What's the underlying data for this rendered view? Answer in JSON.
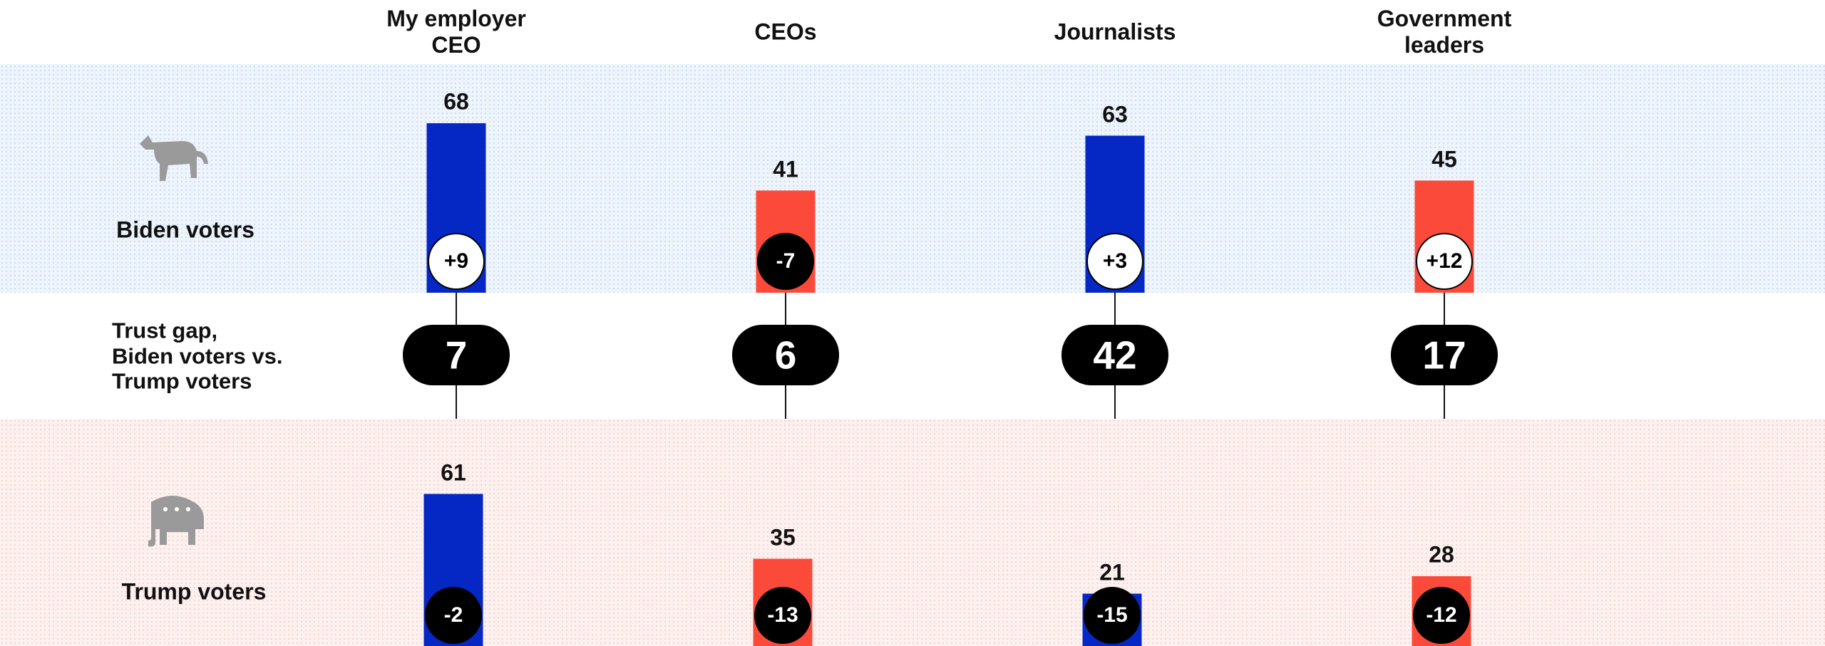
{
  "chart_data": {
    "type": "bar",
    "categories": [
      "My employer\nCEO",
      "CEOs",
      "Journalists",
      "Government\nleaders"
    ],
    "bar_colors": [
      "#0527c4",
      "#fc4a3a",
      "#0527c4",
      "#fc4a3a"
    ],
    "series": [
      {
        "name": "Biden voters",
        "values": [
          68,
          41,
          63,
          45
        ],
        "changes": [
          9,
          -7,
          3,
          12
        ],
        "change_labels": [
          "+9",
          "-7",
          "+3",
          "+12"
        ]
      },
      {
        "name": "Trump voters",
        "values": [
          61,
          35,
          21,
          28
        ],
        "changes": [
          -2,
          -13,
          -15,
          -12
        ],
        "change_labels": [
          "-2",
          "-13",
          "-15",
          "-12"
        ]
      }
    ],
    "gap_label": "Trust gap,\nBiden voters vs.\nTrump voters",
    "gaps": [
      7,
      6,
      42,
      17
    ]
  }
}
